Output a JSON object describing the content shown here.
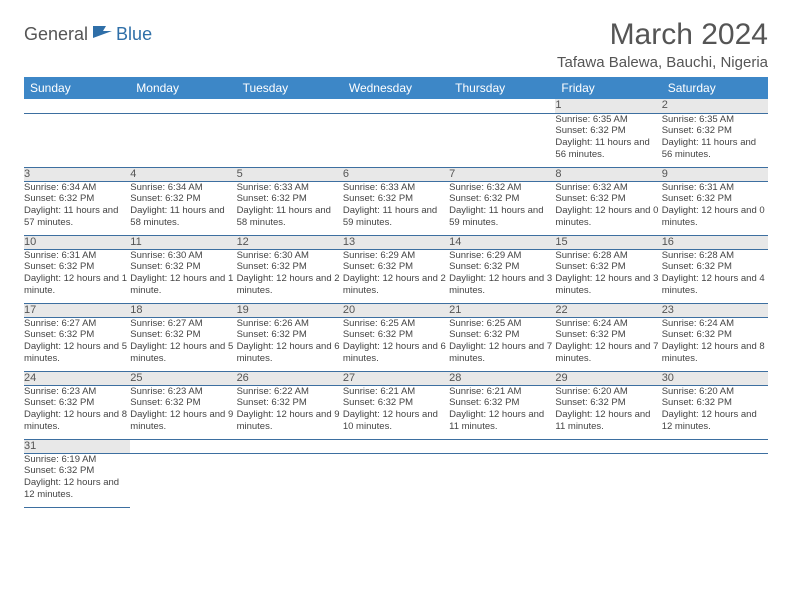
{
  "logo": {
    "general": "General",
    "blue": "Blue"
  },
  "title": "March 2024",
  "location": "Tafawa Balewa, Bauchi, Nigeria",
  "colors": {
    "header_bg": "#3d87c7",
    "header_text": "#ffffff",
    "daynum_bg": "#e8e8e8",
    "border": "#3d6fa0",
    "title_color": "#555555"
  },
  "day_headers": [
    "Sunday",
    "Monday",
    "Tuesday",
    "Wednesday",
    "Thursday",
    "Friday",
    "Saturday"
  ],
  "weeks": [
    [
      null,
      null,
      null,
      null,
      null,
      {
        "n": "1",
        "sr": "Sunrise: 6:35 AM",
        "ss": "Sunset: 6:32 PM",
        "dl": "Daylight: 11 hours and 56 minutes."
      },
      {
        "n": "2",
        "sr": "Sunrise: 6:35 AM",
        "ss": "Sunset: 6:32 PM",
        "dl": "Daylight: 11 hours and 56 minutes."
      }
    ],
    [
      {
        "n": "3",
        "sr": "Sunrise: 6:34 AM",
        "ss": "Sunset: 6:32 PM",
        "dl": "Daylight: 11 hours and 57 minutes."
      },
      {
        "n": "4",
        "sr": "Sunrise: 6:34 AM",
        "ss": "Sunset: 6:32 PM",
        "dl": "Daylight: 11 hours and 58 minutes."
      },
      {
        "n": "5",
        "sr": "Sunrise: 6:33 AM",
        "ss": "Sunset: 6:32 PM",
        "dl": "Daylight: 11 hours and 58 minutes."
      },
      {
        "n": "6",
        "sr": "Sunrise: 6:33 AM",
        "ss": "Sunset: 6:32 PM",
        "dl": "Daylight: 11 hours and 59 minutes."
      },
      {
        "n": "7",
        "sr": "Sunrise: 6:32 AM",
        "ss": "Sunset: 6:32 PM",
        "dl": "Daylight: 11 hours and 59 minutes."
      },
      {
        "n": "8",
        "sr": "Sunrise: 6:32 AM",
        "ss": "Sunset: 6:32 PM",
        "dl": "Daylight: 12 hours and 0 minutes."
      },
      {
        "n": "9",
        "sr": "Sunrise: 6:31 AM",
        "ss": "Sunset: 6:32 PM",
        "dl": "Daylight: 12 hours and 0 minutes."
      }
    ],
    [
      {
        "n": "10",
        "sr": "Sunrise: 6:31 AM",
        "ss": "Sunset: 6:32 PM",
        "dl": "Daylight: 12 hours and 1 minute."
      },
      {
        "n": "11",
        "sr": "Sunrise: 6:30 AM",
        "ss": "Sunset: 6:32 PM",
        "dl": "Daylight: 12 hours and 1 minute."
      },
      {
        "n": "12",
        "sr": "Sunrise: 6:30 AM",
        "ss": "Sunset: 6:32 PM",
        "dl": "Daylight: 12 hours and 2 minutes."
      },
      {
        "n": "13",
        "sr": "Sunrise: 6:29 AM",
        "ss": "Sunset: 6:32 PM",
        "dl": "Daylight: 12 hours and 2 minutes."
      },
      {
        "n": "14",
        "sr": "Sunrise: 6:29 AM",
        "ss": "Sunset: 6:32 PM",
        "dl": "Daylight: 12 hours and 3 minutes."
      },
      {
        "n": "15",
        "sr": "Sunrise: 6:28 AM",
        "ss": "Sunset: 6:32 PM",
        "dl": "Daylight: 12 hours and 3 minutes."
      },
      {
        "n": "16",
        "sr": "Sunrise: 6:28 AM",
        "ss": "Sunset: 6:32 PM",
        "dl": "Daylight: 12 hours and 4 minutes."
      }
    ],
    [
      {
        "n": "17",
        "sr": "Sunrise: 6:27 AM",
        "ss": "Sunset: 6:32 PM",
        "dl": "Daylight: 12 hours and 5 minutes."
      },
      {
        "n": "18",
        "sr": "Sunrise: 6:27 AM",
        "ss": "Sunset: 6:32 PM",
        "dl": "Daylight: 12 hours and 5 minutes."
      },
      {
        "n": "19",
        "sr": "Sunrise: 6:26 AM",
        "ss": "Sunset: 6:32 PM",
        "dl": "Daylight: 12 hours and 6 minutes."
      },
      {
        "n": "20",
        "sr": "Sunrise: 6:25 AM",
        "ss": "Sunset: 6:32 PM",
        "dl": "Daylight: 12 hours and 6 minutes."
      },
      {
        "n": "21",
        "sr": "Sunrise: 6:25 AM",
        "ss": "Sunset: 6:32 PM",
        "dl": "Daylight: 12 hours and 7 minutes."
      },
      {
        "n": "22",
        "sr": "Sunrise: 6:24 AM",
        "ss": "Sunset: 6:32 PM",
        "dl": "Daylight: 12 hours and 7 minutes."
      },
      {
        "n": "23",
        "sr": "Sunrise: 6:24 AM",
        "ss": "Sunset: 6:32 PM",
        "dl": "Daylight: 12 hours and 8 minutes."
      }
    ],
    [
      {
        "n": "24",
        "sr": "Sunrise: 6:23 AM",
        "ss": "Sunset: 6:32 PM",
        "dl": "Daylight: 12 hours and 8 minutes."
      },
      {
        "n": "25",
        "sr": "Sunrise: 6:23 AM",
        "ss": "Sunset: 6:32 PM",
        "dl": "Daylight: 12 hours and 9 minutes."
      },
      {
        "n": "26",
        "sr": "Sunrise: 6:22 AM",
        "ss": "Sunset: 6:32 PM",
        "dl": "Daylight: 12 hours and 9 minutes."
      },
      {
        "n": "27",
        "sr": "Sunrise: 6:21 AM",
        "ss": "Sunset: 6:32 PM",
        "dl": "Daylight: 12 hours and 10 minutes."
      },
      {
        "n": "28",
        "sr": "Sunrise: 6:21 AM",
        "ss": "Sunset: 6:32 PM",
        "dl": "Daylight: 12 hours and 11 minutes."
      },
      {
        "n": "29",
        "sr": "Sunrise: 6:20 AM",
        "ss": "Sunset: 6:32 PM",
        "dl": "Daylight: 12 hours and 11 minutes."
      },
      {
        "n": "30",
        "sr": "Sunrise: 6:20 AM",
        "ss": "Sunset: 6:32 PM",
        "dl": "Daylight: 12 hours and 12 minutes."
      }
    ],
    [
      {
        "n": "31",
        "sr": "Sunrise: 6:19 AM",
        "ss": "Sunset: 6:32 PM",
        "dl": "Daylight: 12 hours and 12 minutes."
      },
      null,
      null,
      null,
      null,
      null,
      null
    ]
  ]
}
